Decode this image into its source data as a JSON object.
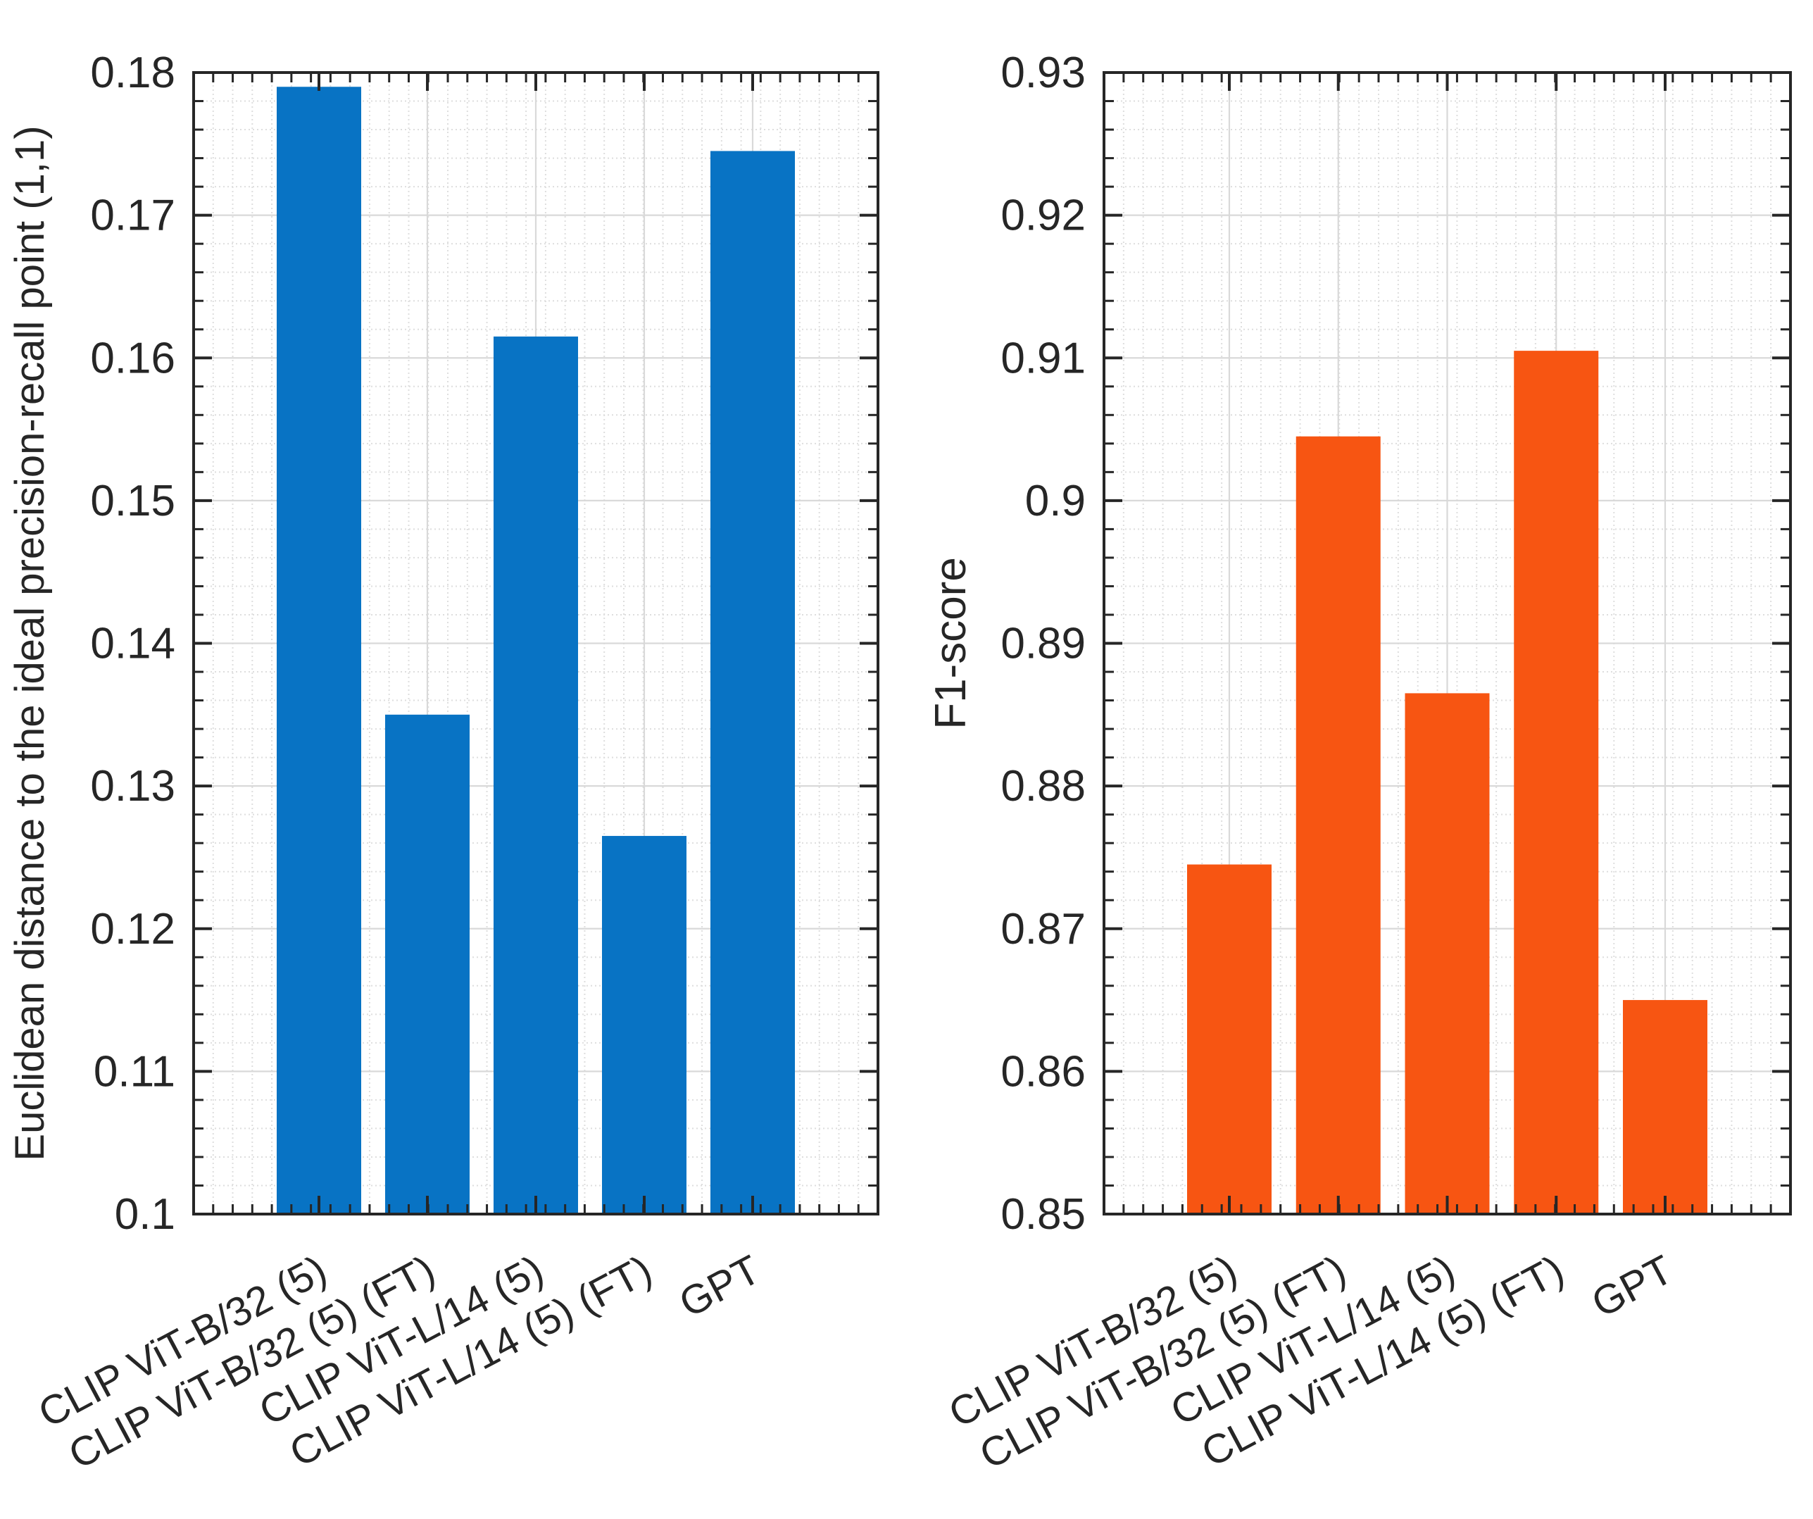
{
  "figure": {
    "background": "#ffffff",
    "axis_color": "#262626",
    "text_color": "#262626",
    "grid_major_color": "#d9d9d9",
    "grid_minor_color": "#dedede"
  },
  "chart_data": [
    {
      "type": "bar",
      "panel": "left",
      "title": "",
      "xlabel": "",
      "ylabel": "Euclidean distance to the ideal precision-recall point (1,1)",
      "categories": [
        "CLIP ViT-B/32 (5)",
        "CLIP ViT-B/32 (5) (FT)",
        "CLIP ViT-L/14 (5)",
        "CLIP ViT-L/14 (5) (FT)",
        "GPT"
      ],
      "values": [
        0.179,
        0.135,
        0.1615,
        0.1265,
        0.1745
      ],
      "ylim": [
        0.1,
        0.18
      ],
      "ytick_step": 0.01,
      "ytick_labels": [
        "0.1",
        "0.11",
        "0.12",
        "0.13",
        "0.14",
        "0.15",
        "0.16",
        "0.17",
        "0.18"
      ],
      "minor_y_step": 0.002,
      "bar_color": "#0873C4",
      "grid": "major+minor",
      "legend": "none"
    },
    {
      "type": "bar",
      "panel": "right",
      "title": "",
      "xlabel": "",
      "ylabel": "F1-score",
      "categories": [
        "CLIP ViT-B/32 (5)",
        "CLIP ViT-B/32 (5) (FT)",
        "CLIP ViT-L/14 (5)",
        "CLIP ViT-L/14 (5) (FT)",
        "GPT"
      ],
      "values": [
        0.8745,
        0.9045,
        0.8865,
        0.9105,
        0.865
      ],
      "ylim": [
        0.85,
        0.93
      ],
      "ytick_step": 0.01,
      "ytick_labels": [
        "0.85",
        "0.86",
        "0.87",
        "0.88",
        "0.89",
        "0.9",
        "0.91",
        "0.92",
        "0.93"
      ],
      "minor_y_step": 0.002,
      "bar_color": "#F75512",
      "grid": "major+minor",
      "legend": "none"
    }
  ]
}
